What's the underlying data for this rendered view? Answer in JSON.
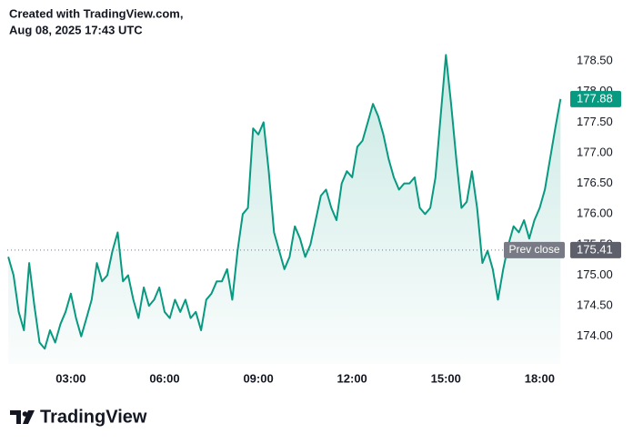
{
  "chart_data": {
    "type": "line",
    "annotations": [
      "Created with TradingView.com,",
      "Aug 08, 2025 17:43 UTC"
    ],
    "brand": "TradingView",
    "color": "#089981",
    "x": [
      60,
      70,
      80,
      90,
      100,
      110,
      120,
      130,
      140,
      150,
      160,
      170,
      180,
      190,
      200,
      210,
      220,
      230,
      240,
      250,
      260,
      270,
      280,
      290,
      300,
      310,
      320,
      330,
      340,
      350,
      360,
      370,
      380,
      390,
      400,
      410,
      420,
      430,
      440,
      450,
      460,
      470,
      480,
      490,
      500,
      510,
      520,
      530,
      540,
      550,
      560,
      570,
      580,
      590,
      600,
      610,
      620,
      630,
      640,
      650,
      660,
      670,
      680,
      690,
      700,
      710,
      720,
      730,
      740,
      750,
      760,
      770,
      780,
      790,
      800,
      810,
      820,
      830,
      840,
      850,
      860,
      870,
      880,
      890,
      900,
      910,
      920,
      930,
      940,
      950,
      960,
      970,
      980,
      990,
      1000,
      1010,
      1020,
      1030,
      1040,
      1050,
      1060,
      1070,
      1080,
      1090,
      1100,
      1110,
      1120
    ],
    "values": [
      175.3,
      175.0,
      174.4,
      174.1,
      175.2,
      174.5,
      173.9,
      173.8,
      174.1,
      173.9,
      174.2,
      174.4,
      174.7,
      174.3,
      174.0,
      174.3,
      174.6,
      175.2,
      174.9,
      175.0,
      175.4,
      175.7,
      174.9,
      175.0,
      174.6,
      174.3,
      174.8,
      174.5,
      174.6,
      174.8,
      174.4,
      174.3,
      174.6,
      174.4,
      174.6,
      174.3,
      174.4,
      174.1,
      174.6,
      174.7,
      174.9,
      174.9,
      175.1,
      174.6,
      175.4,
      176.0,
      176.1,
      177.4,
      177.3,
      177.5,
      176.7,
      175.7,
      175.4,
      175.1,
      175.3,
      175.8,
      175.6,
      175.3,
      175.5,
      175.9,
      176.3,
      176.4,
      176.1,
      175.9,
      176.5,
      176.7,
      176.6,
      177.1,
      177.2,
      177.5,
      177.8,
      177.6,
      177.3,
      176.9,
      176.6,
      176.4,
      176.5,
      176.5,
      176.6,
      176.1,
      176.0,
      176.1,
      176.6,
      177.6,
      178.6,
      177.8,
      176.9,
      176.1,
      176.2,
      176.7,
      176.1,
      175.2,
      175.4,
      175.1,
      174.6,
      175.1,
      175.5,
      175.8,
      175.7,
      175.9,
      175.6,
      175.9,
      176.1,
      176.4,
      176.9,
      177.4,
      177.88
    ],
    "xlim": [
      58,
      1130
    ],
    "xticks": [
      {
        "value": 180,
        "label": "03:00"
      },
      {
        "value": 360,
        "label": "06:00"
      },
      {
        "value": 540,
        "label": "09:00"
      },
      {
        "value": 720,
        "label": "12:00"
      },
      {
        "value": 900,
        "label": "15:00"
      },
      {
        "value": 1080,
        "label": "18:00"
      }
    ],
    "ylim": [
      173.55,
      179.35
    ],
    "yticks": [
      {
        "value": 174,
        "label": "174.00"
      },
      {
        "value": 174.5,
        "label": "174.50"
      },
      {
        "value": 175,
        "label": "175.00"
      },
      {
        "value": 175.5,
        "label": "175.50"
      },
      {
        "value": 176,
        "label": "176.00"
      },
      {
        "value": 176.5,
        "label": "176.50"
      },
      {
        "value": 177,
        "label": "177.00"
      },
      {
        "value": 177.5,
        "label": "177.50"
      },
      {
        "value": 178,
        "label": "178.00"
      },
      {
        "value": 178.5,
        "label": "178.50"
      }
    ],
    "prev_close": {
      "label": "Prev close",
      "value": 175.41
    }
  }
}
